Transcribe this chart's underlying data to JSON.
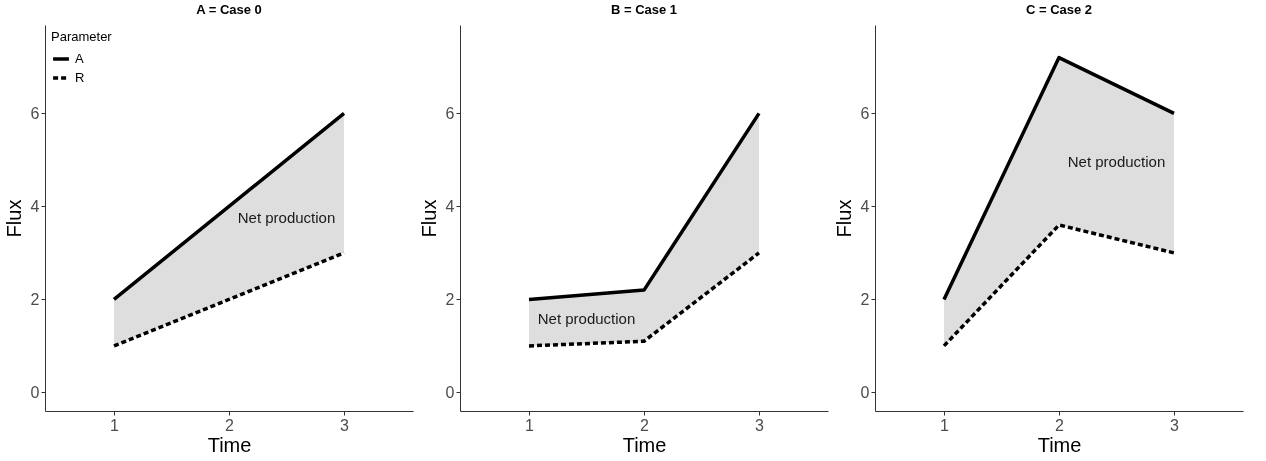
{
  "chart_data": [
    {
      "type": "line",
      "title": "A = Case 0",
      "xlabel": "Time",
      "ylabel": "Flux",
      "x": [
        1,
        2,
        3
      ],
      "xlim": [
        0.4,
        3.6
      ],
      "xticks": [
        1,
        2,
        3
      ],
      "ylim": [
        -0.4,
        7.9
      ],
      "yticks": [
        0,
        2,
        4,
        6
      ],
      "grid": false,
      "legend": "top left",
      "legend_title": "Parameter",
      "marker": "none",
      "series": [
        {
          "name": "A",
          "color": "#000000",
          "line_style": "solid",
          "values": [
            2,
            4,
            6
          ],
          "lower": [
            1,
            2,
            3
          ],
          "upper": [
            2,
            4,
            6
          ]
        },
        {
          "name": "R",
          "color": "#000000",
          "line_style": "dashed",
          "values": [
            1,
            2,
            3
          ]
        }
      ],
      "annotations": [
        "Net production"
      ]
    },
    {
      "type": "line",
      "title": "B = Case 1",
      "xlabel": "Time",
      "ylabel": "Flux",
      "x": [
        1,
        2,
        3
      ],
      "xlim": [
        0.4,
        3.6
      ],
      "xticks": [
        1,
        2,
        3
      ],
      "ylim": [
        -0.4,
        7.9
      ],
      "yticks": [
        0,
        2,
        4,
        6
      ],
      "grid": false,
      "marker": "none",
      "series": [
        {
          "color": "#000000",
          "line_style": "solid",
          "values": [
            2,
            2.2,
            6
          ],
          "lower": [
            1,
            1.1,
            3
          ],
          "upper": [
            2,
            2.2,
            6
          ]
        },
        {
          "color": "#000000",
          "line_style": "dashed",
          "values": [
            1,
            1.1,
            3
          ]
        }
      ],
      "annotations": [
        "Net production"
      ]
    },
    {
      "type": "line",
      "title": "C = Case 2",
      "xlabel": "Time",
      "ylabel": "Flux",
      "x": [
        1,
        2,
        3
      ],
      "xlim": [
        0.4,
        3.6
      ],
      "xticks": [
        1,
        2,
        3
      ],
      "ylim": [
        -0.4,
        7.9
      ],
      "yticks": [
        0,
        2,
        4,
        6
      ],
      "grid": false,
      "marker": "none",
      "series": [
        {
          "color": "#000000",
          "line_style": "solid",
          "values": [
            2,
            7.2,
            6
          ],
          "lower": [
            1,
            3.6,
            3
          ],
          "upper": [
            2,
            7.2,
            6
          ]
        },
        {
          "color": "#000000",
          "line_style": "dashed",
          "values": [
            1,
            3.6,
            3
          ]
        }
      ],
      "annotations": [
        "Net production"
      ]
    }
  ]
}
